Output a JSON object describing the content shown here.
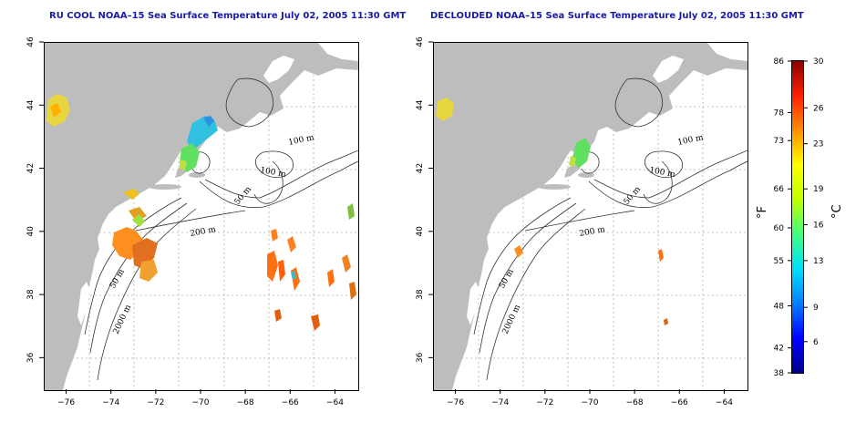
{
  "panels": [
    {
      "title": "RU COOL NOAA–15 Sea Surface Temperature July 02, 2005 11:30 GMT",
      "xticks": [
        "−76",
        "−74",
        "−72",
        "−70",
        "−68",
        "−66",
        "−64"
      ],
      "yticks": [
        "46",
        "44",
        "42",
        "40",
        "38",
        "36"
      ],
      "isobath_labels": [
        "100 m",
        "100 m",
        "50 m",
        "200 m",
        "50 m",
        "2000 m"
      ]
    },
    {
      "title": "DECLOUDED NOAA–15 Sea Surface Temperature July 02, 2005 11:30 GMT",
      "xticks": [
        "−76",
        "−74",
        "−72",
        "−70",
        "−68",
        "−66",
        "−64"
      ],
      "yticks": [
        "46",
        "44",
        "42",
        "40",
        "38",
        "36"
      ],
      "isobath_labels": [
        "100 m",
        "100 m",
        "50 m",
        "200 m",
        "50 m",
        "2000 m"
      ]
    }
  ],
  "map_extent": {
    "lon_min": -77,
    "lon_max": -63,
    "lat_min": 35,
    "lat_max": 46
  },
  "colorbar": {
    "fahrenheit_label": "°F",
    "celsius_label": "°C",
    "fahrenheit_ticks": [
      "86",
      "78",
      "73",
      "66",
      "60",
      "55",
      "48",
      "42",
      "38"
    ],
    "celsius_ticks": [
      "30",
      "26",
      "23",
      "19",
      "16",
      "13",
      "9",
      "6"
    ],
    "range_c": [
      3.3,
      30
    ],
    "colors": [
      "#00008b",
      "#0000ff",
      "#0080ff",
      "#00e0ff",
      "#40ff80",
      "#c0ff00",
      "#ffff00",
      "#ff9000",
      "#ff2000",
      "#8b0000"
    ]
  },
  "colors": {
    "land": "#bdbdbd",
    "title": "#1a1aa6",
    "grid": "#b0b0b0"
  }
}
